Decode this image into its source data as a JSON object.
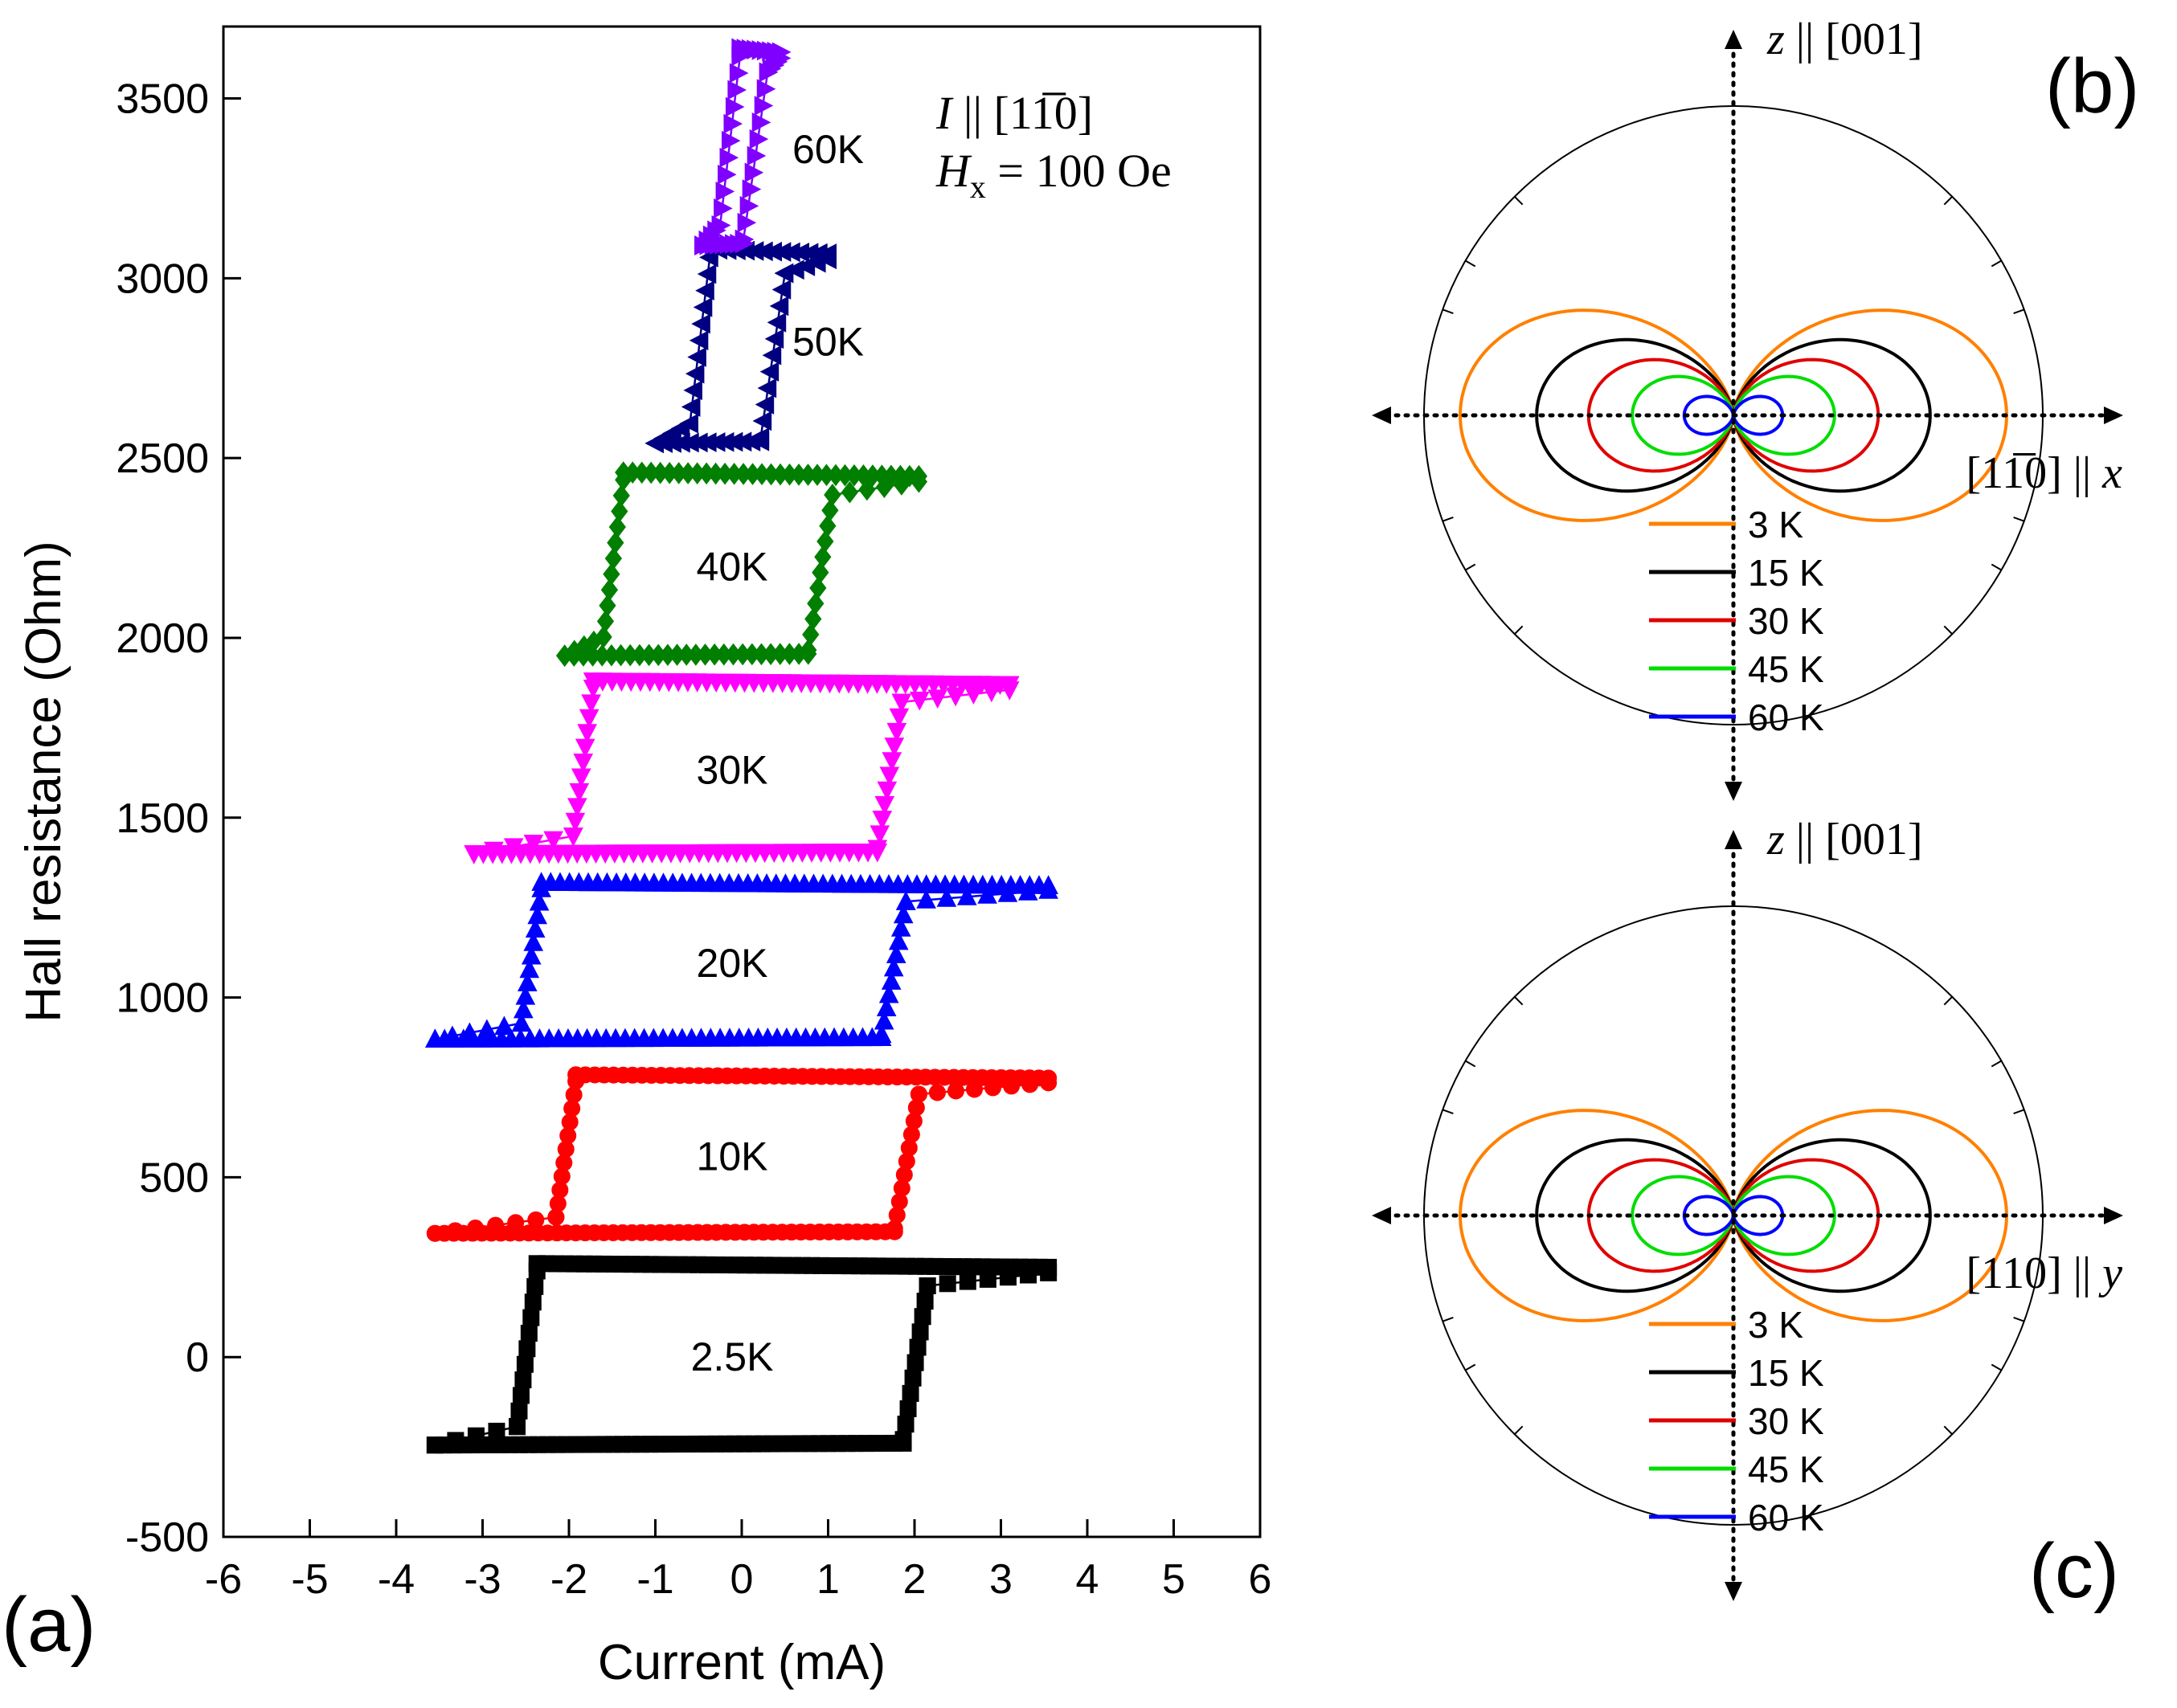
{
  "panel_labels": {
    "a": "(a)",
    "b": "(b)",
    "c": "(c)"
  },
  "chart_data": [
    {
      "id": "panel-a",
      "type": "line",
      "title": "",
      "xlabel": "Current (mA)",
      "ylabel": "Hall resistance (Ohm)",
      "xlim": [
        -6,
        6
      ],
      "ylim": [
        -500,
        3700
      ],
      "xticks": [
        -6,
        -5,
        -4,
        -3,
        -2,
        -1,
        0,
        1,
        2,
        3,
        4,
        5,
        6
      ],
      "yticks": [
        -500,
        0,
        500,
        1000,
        1500,
        2000,
        2500,
        3000,
        3500
      ],
      "annotation_lines": [
        "I || [11̅0]",
        "Hx = 100 Oe"
      ],
      "annotation_parts": {
        "I": "I",
        "par": " || [1",
        "bar": "1̅",
        "close": "0]",
        "H": "H",
        "sub": "x",
        "eq": " = 100 Oe"
      },
      "series": [
        {
          "name": "2.5K",
          "label": "2.5K",
          "color": "#000000",
          "marker": "square",
          "low": -255,
          "high": 260,
          "hc_plus": 1.95,
          "hc_minus": -2.45,
          "imax": 3.55
        },
        {
          "name": "10K",
          "label": "10K",
          "color": "#ff0000",
          "marker": "circle",
          "low": 335,
          "high": 785,
          "hc_plus": 1.85,
          "hc_minus": -2.0,
          "imax": 3.55
        },
        {
          "name": "20K",
          "label": "20K",
          "color": "#0000ff",
          "marker": "triangle-up",
          "low": 875,
          "high": 1320,
          "hc_plus": 1.7,
          "hc_minus": -2.4,
          "imax": 3.55
        },
        {
          "name": "30K",
          "label": "30K",
          "color": "#ff00ff",
          "marker": "triangle-down",
          "low": 1390,
          "high": 1880,
          "hc_plus": 1.65,
          "hc_minus": -1.8,
          "imax": 3.1
        },
        {
          "name": "40K",
          "label": "40K",
          "color": "#007f00",
          "marker": "diamond",
          "low": 1940,
          "high": 2460,
          "hc_plus": 0.85,
          "hc_minus": -1.45,
          "imax": 2.05
        },
        {
          "name": "50K",
          "label": "50K",
          "color": "#000080",
          "marker": "triangle-left",
          "low": 2530,
          "high": 3080,
          "hc_plus": 0.3,
          "hc_minus": -0.45,
          "imax": 1.0
        },
        {
          "name": "60K",
          "label": "60K",
          "color": "#8000ff",
          "marker": "triangle-right",
          "low": 3080,
          "high": 3640,
          "hc_plus": 0.1,
          "hc_minus": -0.1,
          "imax": 0.45
        }
      ]
    },
    {
      "id": "panel-b",
      "type": "polar",
      "vertical_axis_label": "z || [001]",
      "horizontal_axis_label": "[11̅0] || x",
      "hlabel_parts": {
        "open": "[1",
        "bar": "1̅",
        "close": "0] || ",
        "var": "x"
      },
      "vlabel_parts": {
        "var": "z",
        "rest": " || [001]"
      },
      "series": [
        {
          "name": "3 K",
          "color": "#ff8000",
          "amplitude": 1.0
        },
        {
          "name": "15 K",
          "color": "#000000",
          "amplitude": 0.72
        },
        {
          "name": "30 K",
          "color": "#e00000",
          "amplitude": 0.53
        },
        {
          "name": "45 K",
          "color": "#00dd00",
          "amplitude": 0.37
        },
        {
          "name": "60 K",
          "color": "#0000ff",
          "amplitude": 0.18
        }
      ]
    },
    {
      "id": "panel-c",
      "type": "polar",
      "vertical_axis_label": "z || [001]",
      "horizontal_axis_label": "[110] || y",
      "hlabel_parts": {
        "open": "[110] || ",
        "bar": "",
        "close": "",
        "var": "y"
      },
      "vlabel_parts": {
        "var": "z",
        "rest": " || [001]"
      },
      "series": [
        {
          "name": "3 K",
          "color": "#ff8000",
          "amplitude": 1.0
        },
        {
          "name": "15 K",
          "color": "#000000",
          "amplitude": 0.72
        },
        {
          "name": "30 K",
          "color": "#e00000",
          "amplitude": 0.53
        },
        {
          "name": "45 K",
          "color": "#00dd00",
          "amplitude": 0.37
        },
        {
          "name": "60 K",
          "color": "#0000ff",
          "amplitude": 0.18
        }
      ]
    }
  ]
}
